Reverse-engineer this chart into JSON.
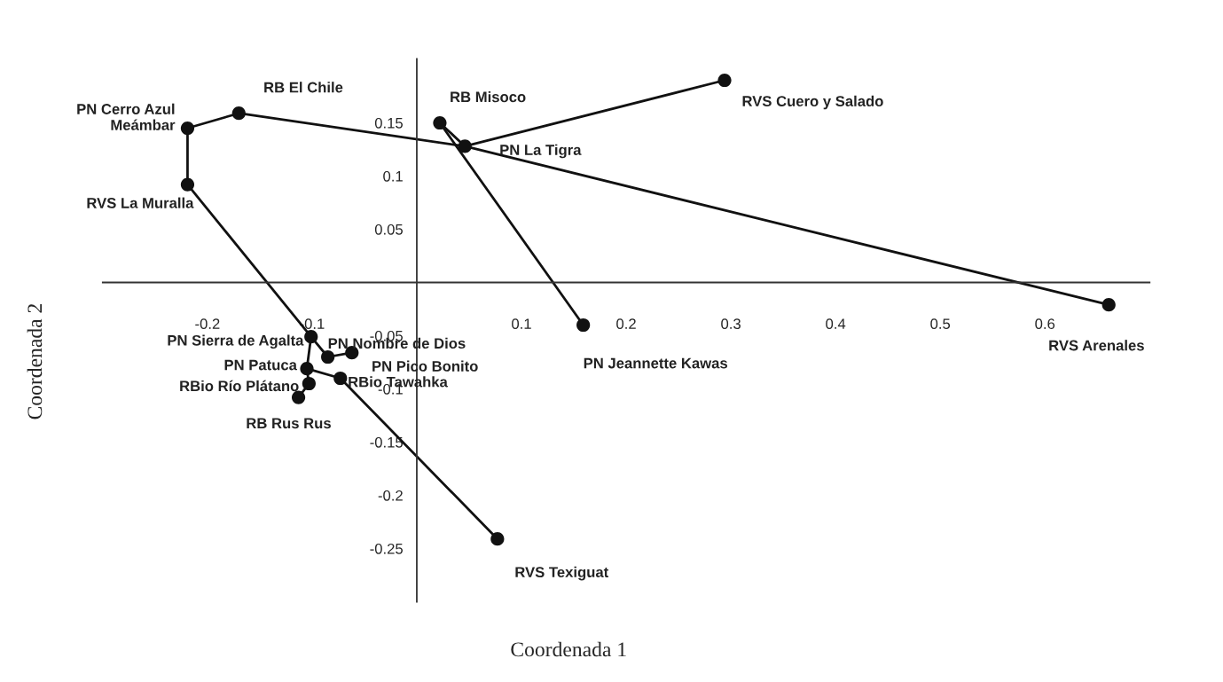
{
  "chart_data": {
    "type": "scatter",
    "xlabel": "Coordenada 1",
    "ylabel": "Coordenada 2",
    "xlim": [
      -0.3,
      0.7
    ],
    "ylim": [
      -0.3,
      0.21
    ],
    "xticks": [
      -0.2,
      -0.1,
      0.1,
      0.2,
      0.3,
      0.4,
      0.5,
      0.6
    ],
    "yticks": [
      -0.25,
      -0.2,
      -0.15,
      -0.1,
      -0.05,
      0.05,
      0.1,
      0.15
    ],
    "grid": false,
    "legend": false,
    "series": [
      {
        "marker": "circle",
        "color": "#111111",
        "x": [
          -0.219,
          -0.17,
          -0.219,
          0.022,
          0.046,
          0.294,
          0.159,
          0.661,
          -0.101,
          -0.085,
          -0.062,
          -0.105,
          -0.103,
          -0.113,
          -0.073,
          0.077
        ],
        "values": [
          0.145,
          0.159,
          0.092,
          0.15,
          0.128,
          0.19,
          -0.04,
          -0.021,
          -0.051,
          -0.07,
          -0.066,
          -0.081,
          -0.095,
          -0.108,
          -0.09,
          -0.241
        ]
      },
      {
        "type": "line",
        "color": "#111111",
        "x": [
          -0.219,
          -0.17
        ],
        "values": [
          0.145,
          0.159
        ]
      },
      {
        "type": "line",
        "color": "#111111",
        "x": [
          -0.219,
          -0.219
        ],
        "values": [
          0.145,
          0.092
        ]
      },
      {
        "type": "line",
        "color": "#111111",
        "x": [
          -0.17,
          0.046
        ],
        "values": [
          0.159,
          0.128
        ]
      },
      {
        "type": "line",
        "color": "#111111",
        "x": [
          0.046,
          0.661
        ],
        "values": [
          0.128,
          -0.021
        ]
      },
      {
        "type": "line",
        "color": "#111111",
        "x": [
          0.046,
          0.294
        ],
        "values": [
          0.128,
          0.19
        ]
      },
      {
        "type": "line",
        "color": "#111111",
        "x": [
          0.022,
          0.046
        ],
        "values": [
          0.15,
          0.128
        ]
      },
      {
        "type": "line",
        "color": "#111111",
        "x": [
          0.022,
          0.159
        ],
        "values": [
          0.15,
          -0.04
        ]
      },
      {
        "type": "line",
        "color": "#111111",
        "x": [
          -0.219,
          -0.101
        ],
        "values": [
          0.092,
          -0.051
        ]
      },
      {
        "type": "line",
        "color": "#111111",
        "x": [
          -0.101,
          -0.085
        ],
        "values": [
          -0.051,
          -0.07
        ]
      },
      {
        "type": "line",
        "color": "#111111",
        "x": [
          -0.085,
          -0.062
        ],
        "values": [
          -0.07,
          -0.066
        ]
      },
      {
        "type": "line",
        "color": "#111111",
        "x": [
          -0.101,
          -0.105
        ],
        "values": [
          -0.051,
          -0.081
        ]
      },
      {
        "type": "line",
        "color": "#111111",
        "x": [
          -0.105,
          -0.103
        ],
        "values": [
          -0.081,
          -0.095
        ]
      },
      {
        "type": "line",
        "color": "#111111",
        "x": [
          -0.103,
          -0.113
        ],
        "values": [
          -0.095,
          -0.108
        ]
      },
      {
        "type": "line",
        "color": "#111111",
        "x": [
          -0.105,
          -0.073
        ],
        "values": [
          -0.081,
          -0.09
        ]
      },
      {
        "type": "line",
        "color": "#111111",
        "x": [
          -0.073,
          0.077
        ],
        "values": [
          -0.09,
          -0.241
        ]
      }
    ],
    "annotations": [
      {
        "text": "PN Cerro Azul\nMeámbar",
        "x": -0.219,
        "y": 0.145
      },
      {
        "text": "RB El Chile",
        "x": -0.17,
        "y": 0.159
      },
      {
        "text": "RVS La Muralla",
        "x": -0.219,
        "y": 0.092
      },
      {
        "text": "RB Misoco",
        "x": 0.022,
        "y": 0.15
      },
      {
        "text": "PN La Tigra",
        "x": 0.046,
        "y": 0.128
      },
      {
        "text": "RVS Cuero y Salado",
        "x": 0.294,
        "y": 0.19
      },
      {
        "text": "PN Jeannette Kawas",
        "x": 0.159,
        "y": -0.04
      },
      {
        "text": "RVS Arenales",
        "x": 0.661,
        "y": -0.021
      },
      {
        "text": "PN Sierra de Agalta",
        "x": -0.101,
        "y": -0.051
      },
      {
        "text": "PN Nombre de Dios",
        "x": -0.085,
        "y": -0.07
      },
      {
        "text": "PN Pico Bonito",
        "x": -0.062,
        "y": -0.066
      },
      {
        "text": "PN Patuca",
        "x": -0.105,
        "y": -0.081
      },
      {
        "text": "RBio Río Plátano",
        "x": -0.103,
        "y": -0.095
      },
      {
        "text": "RB Rus Rus",
        "x": -0.113,
        "y": -0.108
      },
      {
        "text": "RBio Tawahka",
        "x": -0.073,
        "y": -0.09
      },
      {
        "text": "RVS Texiguat",
        "x": 0.077,
        "y": -0.241
      }
    ]
  }
}
